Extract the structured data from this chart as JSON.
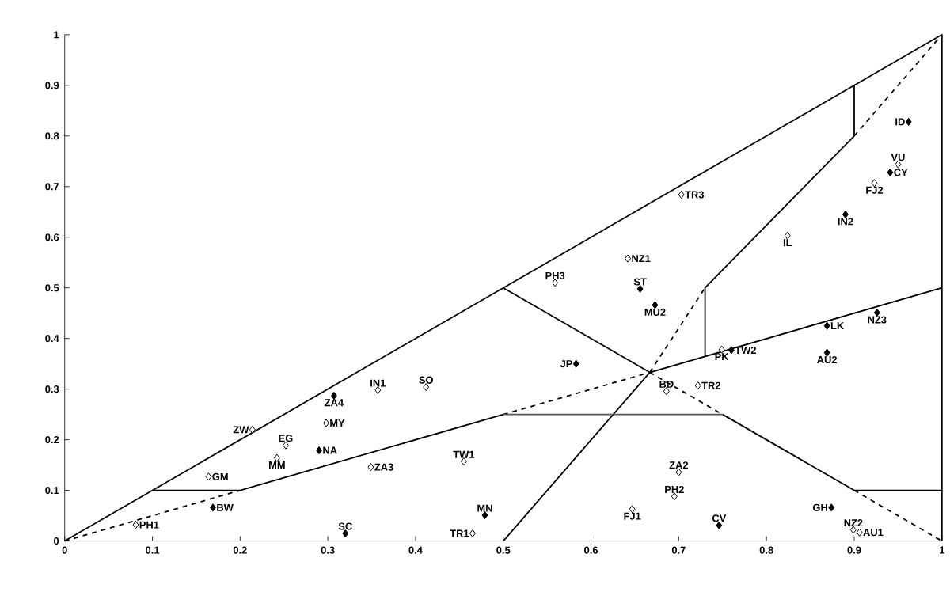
{
  "chart_data": {
    "type": "scatter",
    "xlim": [
      0,
      1
    ],
    "ylim": [
      0,
      1
    ],
    "xticks": [
      0,
      0.1,
      0.2,
      0.3,
      0.4,
      0.5,
      0.6,
      0.7,
      0.8,
      0.9,
      1
    ],
    "yticks": [
      0,
      0.1,
      0.2,
      0.3,
      0.4,
      0.5,
      0.6,
      0.7,
      0.8,
      0.9,
      1
    ],
    "series": [
      {
        "marker": "diamond",
        "color": "#000000",
        "x": [
          0.307,
          0.29,
          0.169,
          0.32,
          0.479,
          0.656,
          0.673,
          0.583,
          0.76,
          0.869,
          0.926,
          0.869,
          0.746,
          0.874,
          0.962,
          0.941,
          0.89
        ],
        "values": [
          0.287,
          0.179,
          0.066,
          0.015,
          0.051,
          0.498,
          0.466,
          0.35,
          0.377,
          0.425,
          0.451,
          0.372,
          0.031,
          0.066,
          0.828,
          0.728,
          0.645
        ]
      },
      {
        "marker": "diamond",
        "color": "#ffffff",
        "x": [
          0.214,
          0.357,
          0.412,
          0.298,
          0.252,
          0.242,
          0.349,
          0.455,
          0.164,
          0.081,
          0.465,
          0.642,
          0.559,
          0.749,
          0.686,
          0.722,
          0.7,
          0.695,
          0.647,
          0.899,
          0.906,
          0.824,
          0.95,
          0.923,
          0.703
        ],
        "values": [
          0.22,
          0.298,
          0.304,
          0.233,
          0.189,
          0.164,
          0.146,
          0.157,
          0.127,
          0.032,
          0.015,
          0.558,
          0.51,
          0.378,
          0.296,
          0.307,
          0.136,
          0.088,
          0.063,
          0.022,
          0.017,
          0.603,
          0.744,
          0.707,
          0.684
        ]
      },
      {
        "type": "line",
        "marker": "none",
        "color": "#000000",
        "line_style": "solid",
        "x": [
          0,
          1,
          1
        ],
        "values": [
          0,
          1,
          0
        ]
      },
      {
        "type": "line",
        "marker": "none",
        "color": "#000000",
        "line_style": "dashed",
        "x": [
          0,
          0.2
        ],
        "values": [
          0,
          0.1
        ]
      },
      {
        "type": "line",
        "marker": "none",
        "color": "#000000",
        "line_style": "solid",
        "x": [
          0.1,
          0.2,
          0.5
        ],
        "values": [
          0.1,
          0.1,
          0.25
        ]
      },
      {
        "type": "line",
        "marker": "none",
        "color": "#000000",
        "line_style": "dashed",
        "x": [
          0.5,
          0.667
        ],
        "values": [
          0.25,
          0.333
        ]
      },
      {
        "type": "line",
        "marker": "none",
        "color": "#000000",
        "line_style": "solid",
        "x": [
          0.5,
          0.667,
          1
        ],
        "values": [
          0,
          0.333,
          0.5
        ]
      },
      {
        "type": "line",
        "marker": "none",
        "color": "#000000",
        "line_style": "solid",
        "x": [
          0.5,
          0.667
        ],
        "values": [
          0.5,
          0.333
        ]
      },
      {
        "type": "line",
        "marker": "none",
        "color": "#000000",
        "line_style": "dashed",
        "x": [
          0.667,
          0.75
        ],
        "values": [
          0.333,
          0.25
        ]
      },
      {
        "type": "line",
        "marker": "none",
        "color": "#000000",
        "line_style": "solid",
        "x": [
          0.75,
          0.9,
          1
        ],
        "values": [
          0.25,
          0.1,
          0.1
        ]
      },
      {
        "type": "line",
        "marker": "none",
        "color": "#000000",
        "line_style": "dashed",
        "x": [
          0.9,
          1
        ],
        "values": [
          0.1,
          0
        ]
      },
      {
        "type": "line",
        "marker": "none",
        "color": "#555555",
        "line_style": "solid",
        "x": [
          0.5,
          0.75
        ],
        "values": [
          0.25,
          0.25
        ]
      },
      {
        "type": "line",
        "marker": "none",
        "color": "#000000",
        "line_style": "dashed",
        "x": [
          0.667,
          0.73
        ],
        "values": [
          0.333,
          0.5
        ]
      },
      {
        "type": "line",
        "marker": "none",
        "color": "#000000",
        "line_style": "solid",
        "x": [
          0.73,
          0.73,
          0.9,
          0.9
        ],
        "values": [
          0.365,
          0.5,
          0.8,
          0.9
        ]
      },
      {
        "type": "line",
        "marker": "none",
        "color": "#000000",
        "line_style": "dashed",
        "x": [
          0.9,
          1
        ],
        "values": [
          0.8,
          1
        ]
      }
    ],
    "annotations": [
      {
        "text": "ZA4",
        "x": 0.307,
        "y": 0.287
      },
      {
        "text": "NA",
        "x": 0.29,
        "y": 0.179
      },
      {
        "text": "BW",
        "x": 0.169,
        "y": 0.066
      },
      {
        "text": "SC",
        "x": 0.32,
        "y": 0.015
      },
      {
        "text": "MN",
        "x": 0.479,
        "y": 0.051
      },
      {
        "text": "ST",
        "x": 0.656,
        "y": 0.498
      },
      {
        "text": "MU2",
        "x": 0.673,
        "y": 0.466
      },
      {
        "text": "JP",
        "x": 0.583,
        "y": 0.35
      },
      {
        "text": "TW2",
        "x": 0.76,
        "y": 0.377
      },
      {
        "text": "LK",
        "x": 0.869,
        "y": 0.425
      },
      {
        "text": "NZ3",
        "x": 0.926,
        "y": 0.451
      },
      {
        "text": "AU2",
        "x": 0.869,
        "y": 0.372
      },
      {
        "text": "CV",
        "x": 0.746,
        "y": 0.031
      },
      {
        "text": "GH",
        "x": 0.874,
        "y": 0.066
      },
      {
        "text": "ID",
        "x": 0.962,
        "y": 0.828
      },
      {
        "text": "CY",
        "x": 0.941,
        "y": 0.728
      },
      {
        "text": "IN2",
        "x": 0.89,
        "y": 0.645
      },
      {
        "text": "ZW",
        "x": 0.214,
        "y": 0.22
      },
      {
        "text": "IN1",
        "x": 0.357,
        "y": 0.298
      },
      {
        "text": "SO",
        "x": 0.412,
        "y": 0.304
      },
      {
        "text": "MY",
        "x": 0.298,
        "y": 0.233
      },
      {
        "text": "EG",
        "x": 0.252,
        "y": 0.189
      },
      {
        "text": "MM",
        "x": 0.242,
        "y": 0.164
      },
      {
        "text": "ZA3",
        "x": 0.349,
        "y": 0.146
      },
      {
        "text": "TW1",
        "x": 0.455,
        "y": 0.157
      },
      {
        "text": "GM",
        "x": 0.164,
        "y": 0.127
      },
      {
        "text": "PH1",
        "x": 0.081,
        "y": 0.032
      },
      {
        "text": "TR1",
        "x": 0.465,
        "y": 0.015
      },
      {
        "text": "NZ1",
        "x": 0.642,
        "y": 0.558
      },
      {
        "text": "PH3",
        "x": 0.559,
        "y": 0.51
      },
      {
        "text": "PK",
        "x": 0.749,
        "y": 0.378
      },
      {
        "text": "BD",
        "x": 0.686,
        "y": 0.296
      },
      {
        "text": "TR2",
        "x": 0.722,
        "y": 0.307
      },
      {
        "text": "ZA2",
        "x": 0.7,
        "y": 0.136
      },
      {
        "text": "PH2",
        "x": 0.695,
        "y": 0.088
      },
      {
        "text": "FJ1",
        "x": 0.647,
        "y": 0.063
      },
      {
        "text": "NZ2",
        "x": 0.899,
        "y": 0.022
      },
      {
        "text": "AU1",
        "x": 0.906,
        "y": 0.017
      },
      {
        "text": "IL",
        "x": 0.824,
        "y": 0.603
      },
      {
        "text": "VU",
        "x": 0.95,
        "y": 0.744
      },
      {
        "text": "FJ2",
        "x": 0.923,
        "y": 0.707
      },
      {
        "text": "TR3",
        "x": 0.703,
        "y": 0.684
      }
    ]
  }
}
